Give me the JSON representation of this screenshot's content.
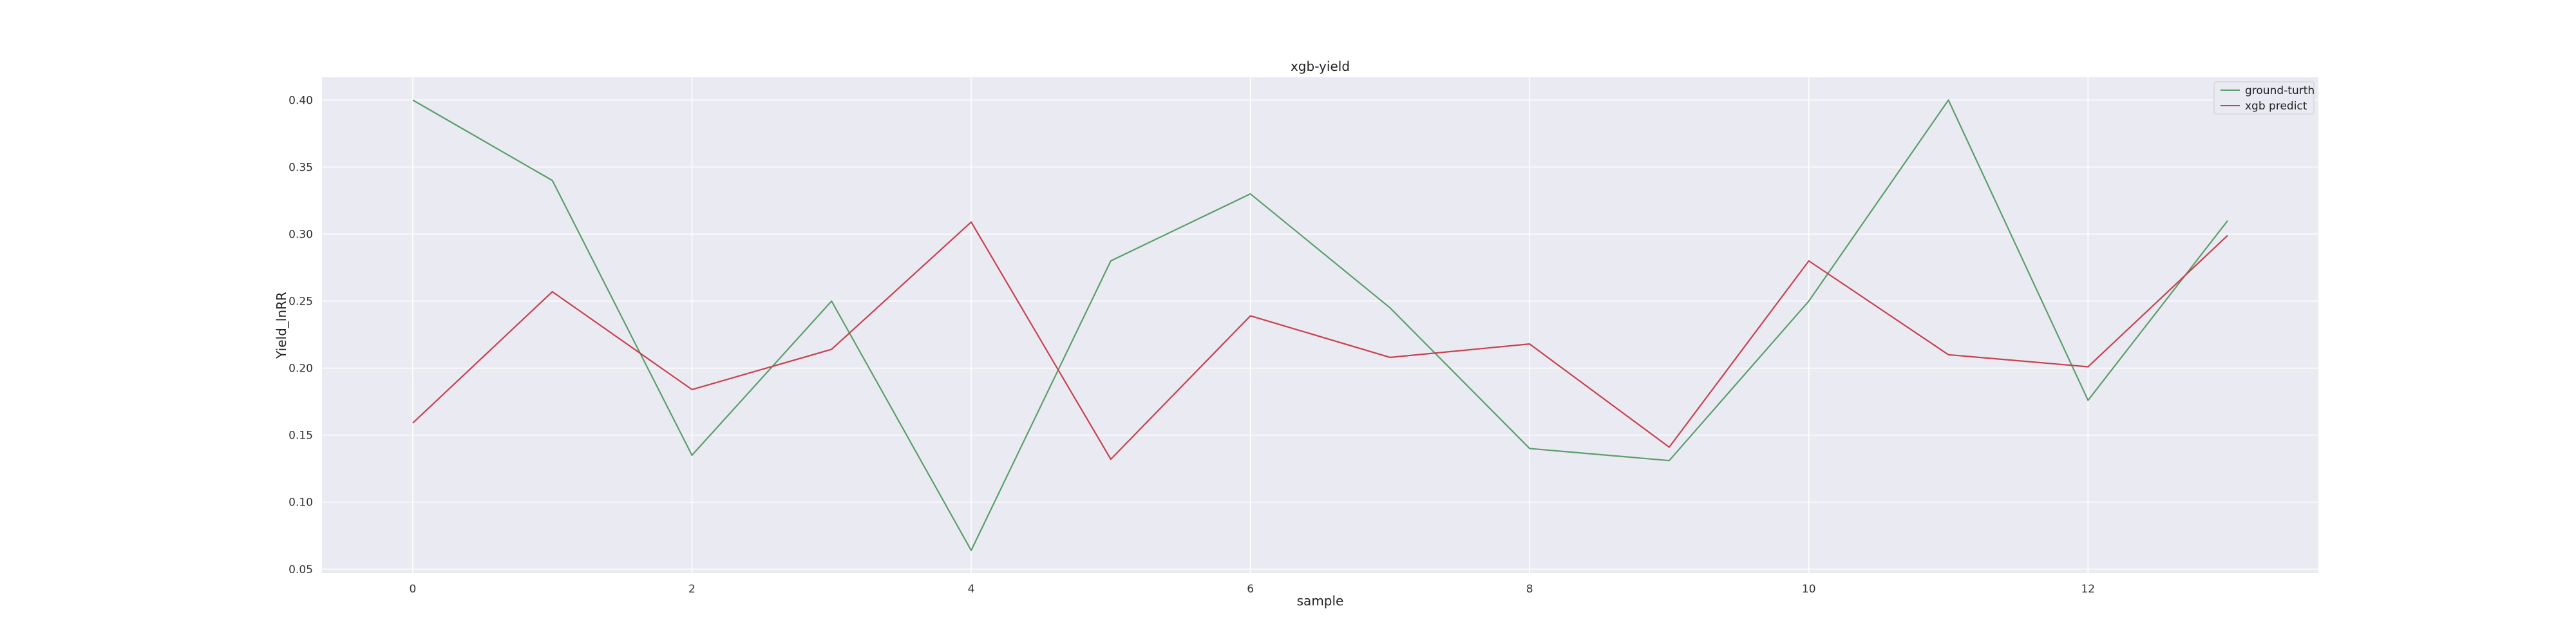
{
  "chart_data": {
    "type": "line",
    "title": "xgb-yield",
    "xlabel": "sample",
    "ylabel": "Yield_lnRR",
    "x": [
      0,
      1,
      2,
      3,
      4,
      5,
      6,
      7,
      8,
      9,
      10,
      11,
      12,
      13
    ],
    "xlim": [
      -0.65,
      13.65
    ],
    "ylim": [
      0.047,
      0.417
    ],
    "xticks": [
      0,
      2,
      4,
      6,
      8,
      10,
      12
    ],
    "yticks": [
      0.05,
      0.1,
      0.15,
      0.2,
      0.25,
      0.3,
      0.35,
      0.4
    ],
    "ytick_labels": [
      "0.05",
      "0.10",
      "0.15",
      "0.20",
      "0.25",
      "0.30",
      "0.35",
      "0.40"
    ],
    "grid": true,
    "legend_position": "top-right",
    "series": [
      {
        "name": "ground-turth",
        "color": "#5a9e6a",
        "values": [
          0.4,
          0.34,
          0.135,
          0.25,
          0.064,
          0.28,
          0.33,
          0.245,
          0.14,
          0.131,
          0.25,
          0.4,
          0.176,
          0.31
        ]
      },
      {
        "name": "xgb predict",
        "color": "#c8414f",
        "values": [
          0.159,
          0.257,
          0.184,
          0.214,
          0.309,
          0.132,
          0.239,
          0.208,
          0.218,
          0.141,
          0.28,
          0.21,
          0.201,
          0.299
        ]
      }
    ]
  }
}
